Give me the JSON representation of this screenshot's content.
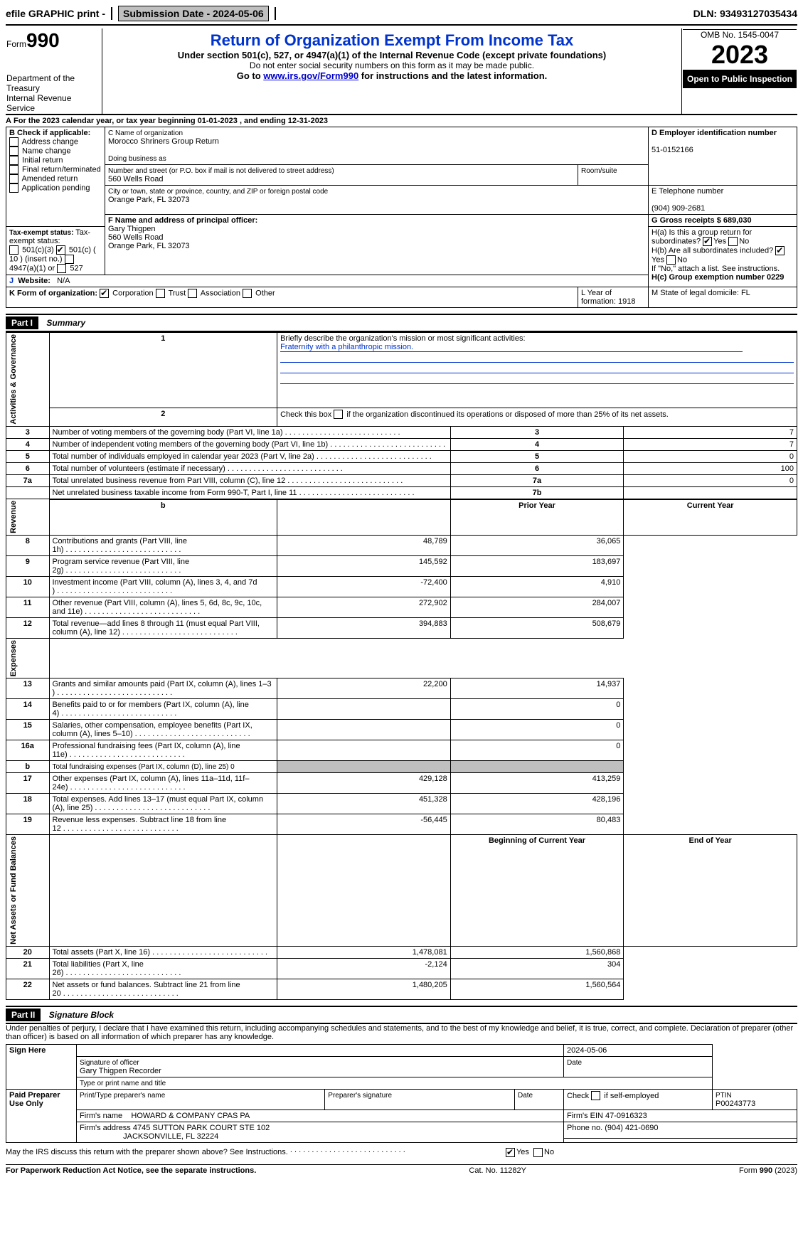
{
  "topbar": {
    "efile": "efile GRAPHIC print -",
    "submission_label": "Submission Date - 2024-05-06",
    "dln": "DLN: 93493127035434"
  },
  "header": {
    "form_word": "Form",
    "form_num": "990",
    "title": "Return of Organization Exempt From Income Tax",
    "sub1": "Under section 501(c), 527, or 4947(a)(1) of the Internal Revenue Code (except private foundations)",
    "sub2": "Do not enter social security numbers on this form as it may be made public.",
    "sub3_pre": "Go to ",
    "sub3_link": "www.irs.gov/Form990",
    "sub3_post": " for instructions and the latest information.",
    "dept": "Department of the Treasury",
    "irs": "Internal Revenue Service",
    "omb": "OMB No. 1545-0047",
    "year": "2023",
    "open": "Open to Public Inspection"
  },
  "lineA": "For the 2023 calendar year, or tax year beginning 01-01-2023   , and ending 12-31-2023",
  "secB": {
    "label": "B Check if applicable:",
    "items": [
      "Address change",
      "Name change",
      "Initial return",
      "Final return/terminated",
      "Amended return",
      "Application pending"
    ]
  },
  "secC": {
    "name_label": "C Name of organization",
    "name": "Morocco Shriners Group Return",
    "dba_label": "Doing business as",
    "addr_label": "Number and street (or P.O. box if mail is not delivered to street address)",
    "room_label": "Room/suite",
    "addr": "560 Wells Road",
    "city_label": "City or town, state or province, country, and ZIP or foreign postal code",
    "city": "Orange Park, FL  32073"
  },
  "secD": {
    "label": "D Employer identification number",
    "val": "51-0152166"
  },
  "secE": {
    "label": "E Telephone number",
    "val": "(904) 909-2681"
  },
  "secG": {
    "label": "G Gross receipts $ 689,030"
  },
  "secF": {
    "label": "F  Name and address of principal officer:",
    "name": "Gary Thigpen",
    "addr1": "560 Wells Road",
    "addr2": "Orange Park, FL  32073"
  },
  "secH": {
    "ha": "H(a)  Is this a group return for subordinates?",
    "hb": "H(b)  Are all subordinates included?",
    "hb_note": "If \"No,\" attach a list. See instructions.",
    "hc": "H(c)  Group exemption number   0229",
    "yes": "Yes",
    "no": "No"
  },
  "secI": {
    "label": "Tax-exempt status:",
    "o1": "501(c)(3)",
    "o2": "501(c) ( 10 ) (insert no.)",
    "o3": "4947(a)(1) or",
    "o4": "527"
  },
  "secJ": {
    "label": "Website:",
    "val": "N/A"
  },
  "secK": {
    "label": "K Form of organization:",
    "o1": "Corporation",
    "o2": "Trust",
    "o3": "Association",
    "o4": "Other"
  },
  "secL": "L Year of formation: 1918",
  "secM": "M State of legal domicile: FL",
  "part1": {
    "hdr": "Part I",
    "title": "Summary"
  },
  "summary": {
    "sideA": "Activities & Governance",
    "sideB": "Revenue",
    "sideC": "Expenses",
    "sideD": "Net Assets or Fund Balances",
    "line1_label": "Briefly describe the organization's mission or most significant activities:",
    "line1_text": "Fraternity with a philanthropic mission.",
    "line2": "Check this box      if the organization discontinued its operations or disposed of more than 25% of its net assets.",
    "rows_top": [
      {
        "n": "3",
        "t": "Number of voting members of the governing body (Part VI, line 1a)",
        "rn": "3",
        "v": "7"
      },
      {
        "n": "4",
        "t": "Number of independent voting members of the governing body (Part VI, line 1b)",
        "rn": "4",
        "v": "7"
      },
      {
        "n": "5",
        "t": "Total number of individuals employed in calendar year 2023 (Part V, line 2a)",
        "rn": "5",
        "v": "0"
      },
      {
        "n": "6",
        "t": "Total number of volunteers (estimate if necessary)",
        "rn": "6",
        "v": "100"
      },
      {
        "n": "7a",
        "t": "Total unrelated business revenue from Part VIII, column (C), line 12",
        "rn": "7a",
        "v": "0"
      },
      {
        "n": "",
        "t": "Net unrelated business taxable income from Form 990-T, Part I, line 11",
        "rn": "7b",
        "v": ""
      }
    ],
    "hdr_b": "b",
    "hdr_prior": "Prior Year",
    "hdr_curr": "Current Year",
    "rows_rev": [
      {
        "n": "8",
        "t": "Contributions and grants (Part VIII, line 1h)",
        "p": "48,789",
        "c": "36,065"
      },
      {
        "n": "9",
        "t": "Program service revenue (Part VIII, line 2g)",
        "p": "145,592",
        "c": "183,697"
      },
      {
        "n": "10",
        "t": "Investment income (Part VIII, column (A), lines 3, 4, and 7d )",
        "p": "-72,400",
        "c": "4,910"
      },
      {
        "n": "11",
        "t": "Other revenue (Part VIII, column (A), lines 5, 6d, 8c, 9c, 10c, and 11e)",
        "p": "272,902",
        "c": "284,007"
      },
      {
        "n": "12",
        "t": "Total revenue—add lines 8 through 11 (must equal Part VIII, column (A), line 12)",
        "p": "394,883",
        "c": "508,679"
      }
    ],
    "rows_exp": [
      {
        "n": "13",
        "t": "Grants and similar amounts paid (Part IX, column (A), lines 1–3 )",
        "p": "22,200",
        "c": "14,937"
      },
      {
        "n": "14",
        "t": "Benefits paid to or for members (Part IX, column (A), line 4)",
        "p": "",
        "c": "0"
      },
      {
        "n": "15",
        "t": "Salaries, other compensation, employee benefits (Part IX, column (A), lines 5–10)",
        "p": "",
        "c": "0"
      },
      {
        "n": "16a",
        "t": "Professional fundraising fees (Part IX, column (A), line 11e)",
        "p": "",
        "c": "0"
      },
      {
        "n": "b",
        "t": "Total fundraising expenses (Part IX, column (D), line 25) 0",
        "p": "GREY",
        "c": "GREY",
        "small": true
      },
      {
        "n": "17",
        "t": "Other expenses (Part IX, column (A), lines 11a–11d, 11f–24e)",
        "p": "429,128",
        "c": "413,259"
      },
      {
        "n": "18",
        "t": "Total expenses. Add lines 13–17 (must equal Part IX, column (A), line 25)",
        "p": "451,328",
        "c": "428,196"
      },
      {
        "n": "19",
        "t": "Revenue less expenses. Subtract line 18 from line 12",
        "p": "-56,445",
        "c": "80,483"
      }
    ],
    "hdr_boy": "Beginning of Current Year",
    "hdr_eoy": "End of Year",
    "rows_net": [
      {
        "n": "20",
        "t": "Total assets (Part X, line 16)",
        "p": "1,478,081",
        "c": "1,560,868"
      },
      {
        "n": "21",
        "t": "Total liabilities (Part X, line 26)",
        "p": "-2,124",
        "c": "304"
      },
      {
        "n": "22",
        "t": "Net assets or fund balances. Subtract line 21 from line 20",
        "p": "1,480,205",
        "c": "1,560,564"
      }
    ]
  },
  "part2": {
    "hdr": "Part II",
    "title": "Signature Block"
  },
  "sig": {
    "penalty": "Under penalties of perjury, I declare that I have examined this return, including accompanying schedules and statements, and to the best of my knowledge and belief, it is true, correct, and complete. Declaration of preparer (other than officer) is based on all information of which preparer has any knowledge.",
    "sign_here": "Sign Here",
    "sig_officer": "Signature of officer",
    "sig_date": "2024-05-06",
    "officer_name": "Gary Thigpen Recorder",
    "type_label": "Type or print name and title",
    "date_label": "Date",
    "paid": "Paid Preparer Use Only",
    "prep_name_label": "Print/Type preparer's name",
    "prep_sig_label": "Preparer's signature",
    "self_emp": "Check       if self-employed",
    "ptin_label": "PTIN",
    "ptin": "P00243773",
    "firm_name_label": "Firm's name",
    "firm_name": "HOWARD & COMPANY CPAS PA",
    "firm_ein": "Firm's EIN 47-0916323",
    "firm_addr_label": "Firm's address",
    "firm_addr1": "4745 SUTTON PARK COURT STE 102",
    "firm_addr2": "JACKSONVILLE, FL  32224",
    "firm_phone": "Phone no. (904) 421-0690",
    "discuss": "May the IRS discuss this return with the preparer shown above? See Instructions.",
    "yes": "Yes",
    "no": "No"
  },
  "footer": {
    "left": "For Paperwork Reduction Act Notice, see the separate instructions.",
    "mid": "Cat. No. 11282Y",
    "right_form": "Form ",
    "right_num": "990",
    "right_yr": " (2023)"
  }
}
